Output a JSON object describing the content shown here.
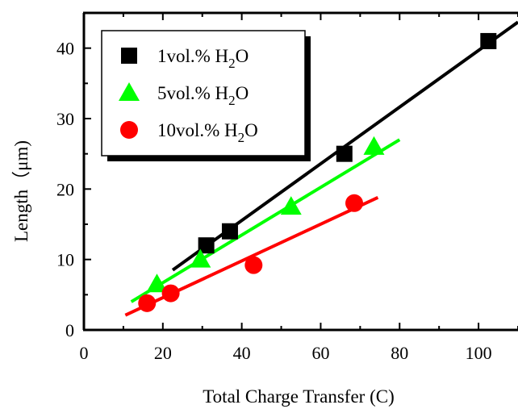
{
  "chart_data": {
    "type": "scatter",
    "title": "",
    "xlabel": "Total Charge Transfer (C)",
    "ylabel": "Length（μm)",
    "xlim": [
      0,
      110
    ],
    "ylim": [
      0,
      45
    ],
    "xticks": [
      0,
      20,
      40,
      60,
      80,
      100
    ],
    "yticks": [
      0,
      10,
      20,
      30,
      40
    ],
    "grid": false,
    "legend_position": "top-left",
    "series": [
      {
        "name": "1vol.% H2O",
        "name_parts": [
          "1vol.% H",
          "2",
          "O"
        ],
        "marker": "square",
        "color": "#000000",
        "x": [
          31,
          37,
          66,
          102.5
        ],
        "y": [
          12,
          14,
          25,
          41
        ],
        "fit_line": {
          "x": [
            22.5,
            110
          ],
          "y": [
            8.5,
            43.7
          ]
        }
      },
      {
        "name": "5vol.% H2O",
        "name_parts": [
          "5vol.% H",
          "2",
          "O"
        ],
        "marker": "triangle",
        "color": "#00ff00",
        "x": [
          18.5,
          29.5,
          52.5,
          73.5
        ],
        "y": [
          6.5,
          10,
          17.5,
          26
        ],
        "fit_line": {
          "x": [
            12,
            80
          ],
          "y": [
            4,
            27
          ]
        }
      },
      {
        "name": "10vol.% H2O",
        "name_parts": [
          "10vol.% H",
          "2",
          "O"
        ],
        "marker": "circle",
        "color": "#ff0000",
        "x": [
          16,
          22,
          43,
          68.5
        ],
        "y": [
          3.8,
          5.2,
          9.2,
          18
        ],
        "fit_line": {
          "x": [
            10.5,
            74.5
          ],
          "y": [
            2.1,
            18.8
          ]
        }
      }
    ]
  }
}
